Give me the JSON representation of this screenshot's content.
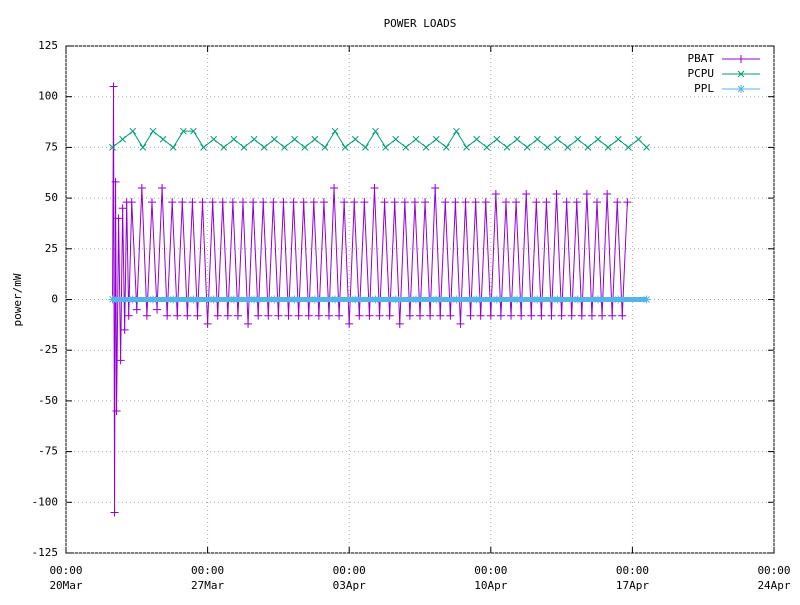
{
  "chart_data": {
    "type": "line",
    "title": "POWER LOADS",
    "y_label": "power/mW",
    "xlim": [
      0,
      35
    ],
    "ylim": [
      -125,
      125
    ],
    "xticks": [
      {
        "value": 0,
        "label": "00:00 20Mar"
      },
      {
        "value": 7,
        "label": "00:00 27Mar"
      },
      {
        "value": 14,
        "label": "00:00 03Apr"
      },
      {
        "value": 21,
        "label": "00:00 10Apr"
      },
      {
        "value": 28,
        "label": "00:00 17Apr"
      },
      {
        "value": 35,
        "label": "00:00 24Apr"
      }
    ],
    "yticks": [
      -125,
      -100,
      -75,
      -50,
      -25,
      0,
      25,
      50,
      75,
      100,
      125
    ],
    "grid": true,
    "legend": "top-right",
    "series": [
      {
        "name": "PBAT",
        "color": "#9400d3",
        "marker": "plus",
        "x": [
          2.3,
          2.35,
          2.4,
          2.45,
          2.5,
          2.6,
          2.7,
          2.8,
          2.9,
          3.0,
          3.1,
          3.25,
          3.5,
          3.75,
          4,
          4.25,
          4.5,
          4.75,
          5,
          5.25,
          5.5,
          5.75,
          6,
          6.25,
          6.5,
          6.75,
          7,
          7.25,
          7.5,
          7.75,
          8,
          8.25,
          8.5,
          8.75,
          9,
          9.25,
          9.5,
          9.75,
          10,
          10.25,
          10.5,
          10.75,
          11,
          11.25,
          11.5,
          11.75,
          12,
          12.25,
          12.5,
          12.75,
          13,
          13.25,
          13.5,
          13.75,
          14,
          14.25,
          14.5,
          14.75,
          15,
          15.25,
          15.5,
          15.75,
          16,
          16.25,
          16.5,
          16.75,
          17,
          17.25,
          17.5,
          17.75,
          18,
          18.25,
          18.5,
          18.75,
          19,
          19.25,
          19.5,
          19.75,
          20,
          20.25,
          20.5,
          20.75,
          21,
          21.25,
          21.5,
          21.75,
          22,
          22.25,
          22.5,
          22.75,
          23,
          23.25,
          23.5,
          23.75,
          24,
          24.25,
          24.5,
          24.75,
          25,
          25.25,
          25.5,
          25.75,
          26,
          26.25,
          26.5,
          26.75,
          27,
          27.25,
          27.5,
          27.75
        ],
        "values": [
          0,
          105,
          -105,
          58,
          -55,
          40,
          -30,
          45,
          -15,
          48,
          -8,
          48,
          -5,
          55,
          -8,
          48,
          -5,
          55,
          -8,
          48,
          -8,
          48,
          -8,
          48,
          -8,
          48,
          -12,
          48,
          -8,
          48,
          -8,
          48,
          -8,
          48,
          -12,
          48,
          -8,
          48,
          -8,
          48,
          -8,
          48,
          -8,
          48,
          -8,
          48,
          -8,
          48,
          -8,
          48,
          -8,
          55,
          -8,
          48,
          -12,
          48,
          -8,
          48,
          -8,
          55,
          -8,
          48,
          -8,
          48,
          -12,
          48,
          -8,
          48,
          -8,
          48,
          -8,
          55,
          -8,
          48,
          -8,
          48,
          -12,
          48,
          -8,
          48,
          -8,
          48,
          -8,
          52,
          -8,
          48,
          -8,
          48,
          -8,
          52,
          -8,
          48,
          -8,
          48,
          -8,
          52,
          -8,
          48,
          -8,
          48,
          -8,
          52,
          -8,
          48,
          -8,
          52,
          -8,
          48,
          -8,
          48
        ]
      },
      {
        "name": "PCPU",
        "color": "#009e73",
        "marker": "cross",
        "x": [
          2.3,
          2.8,
          3.3,
          3.8,
          4.3,
          4.8,
          5.3,
          5.8,
          6.3,
          6.8,
          7.3,
          7.8,
          8.3,
          8.8,
          9.3,
          9.8,
          10.3,
          10.8,
          11.3,
          11.8,
          12.3,
          12.8,
          13.3,
          13.8,
          14.3,
          14.8,
          15.3,
          15.8,
          16.3,
          16.8,
          17.3,
          17.8,
          18.3,
          18.8,
          19.3,
          19.8,
          20.3,
          20.8,
          21.3,
          21.8,
          22.3,
          22.8,
          23.3,
          23.8,
          24.3,
          24.8,
          25.3,
          25.8,
          26.3,
          26.8,
          27.3,
          27.8,
          28.3,
          28.7
        ],
        "values": [
          75,
          79,
          83,
          75,
          83,
          79,
          75,
          83,
          83,
          75,
          79,
          75,
          79,
          75,
          79,
          75,
          79,
          75,
          79,
          75,
          79,
          75,
          83,
          75,
          79,
          75,
          83,
          75,
          79,
          75,
          79,
          75,
          79,
          75,
          83,
          75,
          79,
          75,
          79,
          75,
          79,
          75,
          79,
          75,
          79,
          75,
          79,
          75,
          79,
          75,
          79,
          75,
          79,
          75
        ]
      },
      {
        "name": "PPL",
        "color": "#56b4e9",
        "marker": "star",
        "x": [
          2.3,
          3.3,
          4.3,
          5.3,
          6.3,
          7.3,
          8.3,
          9.3,
          10.3,
          11.3,
          12.3,
          13.3,
          14.3,
          15.3,
          16.3,
          17.3,
          18.3,
          19.3,
          20.3,
          21.3,
          22.3,
          23.3,
          24.3,
          25.3,
          26.3,
          27.3,
          28.7
        ],
        "values": [
          0,
          0,
          0,
          0,
          0,
          0,
          0,
          0,
          0,
          0,
          0,
          0,
          0,
          0,
          0,
          0,
          0,
          0,
          0,
          0,
          0,
          0,
          0,
          0,
          0,
          0,
          0
        ]
      }
    ]
  }
}
